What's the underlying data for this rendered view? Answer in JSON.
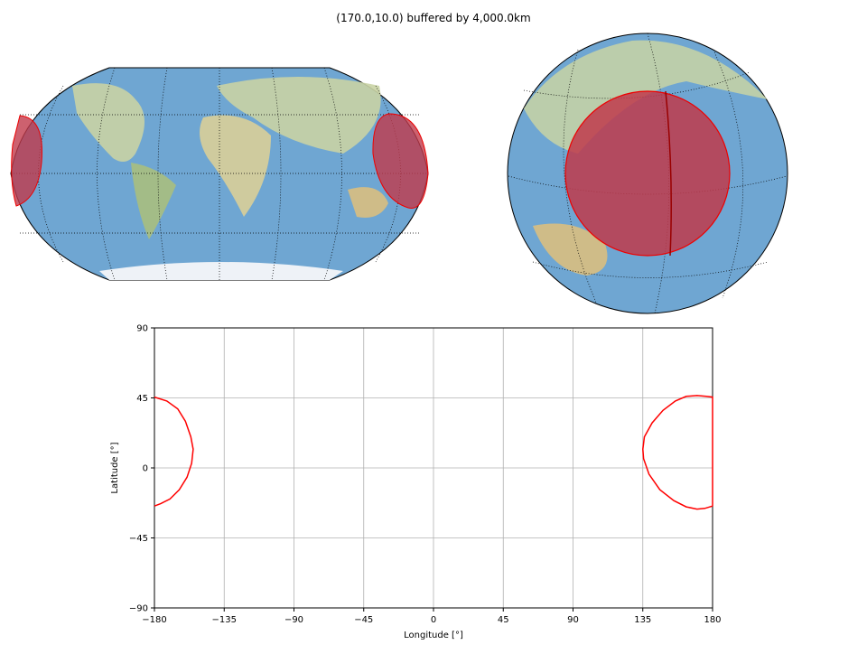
{
  "chart_data": {
    "type": "line",
    "title": "(170.0,10.0) buffered by 4,000.0km",
    "x_label": "Longitude [°]",
    "y_label": "Latitude [°]",
    "color": "#ff0000",
    "grid": true,
    "x": [
      -180,
      -172,
      -165,
      -160,
      -156.5,
      -155,
      -156,
      -159,
      -164,
      -170,
      -176,
      -180,
      null,
      180,
      175,
      170,
      163,
      155,
      146,
      139,
      135.5,
      135,
      136,
      141,
      148,
      156,
      163,
      170,
      176,
      180,
      180
    ],
    "values": [
      45.5,
      43,
      38,
      30,
      20,
      12,
      3,
      -6,
      -14,
      -20,
      -23,
      -24.5,
      null,
      -24.5,
      -26,
      -26.5,
      -25,
      -21,
      -14,
      -4,
      6,
      12,
      20,
      29,
      37,
      43,
      46,
      46.5,
      46,
      45.5,
      -24.5
    ],
    "xlim": [
      -180,
      180
    ],
    "xticks": [
      {
        "value": -180,
        "label": "−180"
      },
      {
        "value": -135,
        "label": "−135"
      },
      {
        "value": -90,
        "label": "−90"
      },
      {
        "value": -45,
        "label": "−45"
      },
      0,
      45,
      90,
      135,
      180
    ],
    "ylim": [
      -90,
      90
    ],
    "yticks": [
      {
        "value": -90,
        "label": "−90"
      },
      {
        "value": -45,
        "label": "−45"
      },
      0,
      45,
      90
    ]
  }
}
